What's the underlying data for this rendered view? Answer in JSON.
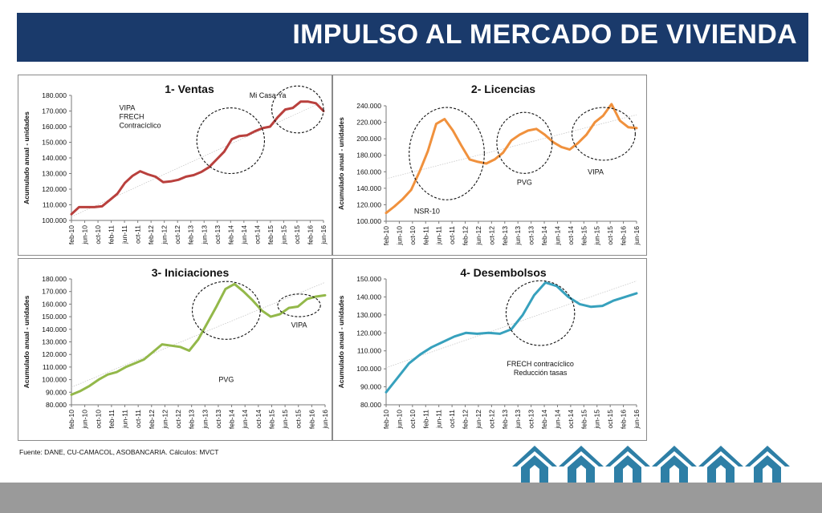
{
  "header": {
    "title": "IMPULSO AL MERCADO DE VIVIENDA",
    "bar_color": "#1a3a6b"
  },
  "source": "Fuente: DANE, CU-CAMACOL, ASOBANCARIA. Cálculos: MVCT",
  "footer": {
    "icon": "house-icon",
    "house_count": 6,
    "house_color": "#2e7fa6"
  },
  "chart_data": [
    {
      "type": "line",
      "title": "1- Ventas",
      "ylabel": "Acumulado anual - unidades",
      "color": "#b9403d",
      "ylim": [
        100000,
        180000
      ],
      "yticks": [
        "100.000",
        "110.000",
        "120.000",
        "130.000",
        "140.000",
        "150.000",
        "160.000",
        "170.000",
        "180.000"
      ],
      "xticks": [
        "feb-10",
        "jun-10",
        "oct-10",
        "feb-11",
        "jun-11",
        "oct-11",
        "feb-12",
        "jun-12",
        "oct-12",
        "feb-13",
        "jun-13",
        "oct-13",
        "feb-14",
        "jun-14",
        "oct-14",
        "feb-15",
        "jun-15",
        "oct-15",
        "feb-16",
        "jun-16"
      ],
      "values": [
        104000,
        108500,
        108500,
        108500,
        109000,
        113000,
        117000,
        124000,
        128500,
        131500,
        129500,
        128000,
        124500,
        125000,
        126000,
        128000,
        129000,
        131000,
        134000,
        139000,
        144000,
        152000,
        154000,
        154500,
        157000,
        159000,
        160000,
        166000,
        171000,
        172000,
        176000,
        176000,
        175000,
        170000
      ],
      "annotations": [
        {
          "text": "VIPA\nFRECH\nContracíclico",
          "x": 3.6,
          "y": 170500,
          "anchor": "start"
        },
        {
          "text": "Mi Casa Ya",
          "x": 14.8,
          "y": 178500,
          "anchor": "middle"
        }
      ],
      "circles": [
        {
          "cx": 12.0,
          "cy": 151000,
          "rx": 2.55,
          "ry": 21000
        },
        {
          "cx": 17.05,
          "cy": 171000,
          "rx": 1.95,
          "ry": 15000
        }
      ]
    },
    {
      "type": "line",
      "title": "2- Licencias",
      "ylabel": "Acumulado anual - unidades",
      "color": "#f0913d",
      "ylim": [
        100000,
        240000
      ],
      "yticks": [
        "100.000",
        "120.000",
        "140.000",
        "160.000",
        "180.000",
        "200.000",
        "220.000",
        "240.000"
      ],
      "xticks": [
        "feb-10",
        "jun-10",
        "oct-10",
        "feb-11",
        "jun-11",
        "oct-11",
        "feb-12",
        "jun-12",
        "oct-12",
        "feb-13",
        "jun-13",
        "oct-13",
        "feb-14",
        "jun-14",
        "oct-14",
        "feb-15",
        "jun-15",
        "oct-15",
        "feb-16",
        "jun-16"
      ],
      "values": [
        110000,
        118000,
        127000,
        138000,
        160000,
        185000,
        218000,
        224000,
        210000,
        192000,
        175000,
        172000,
        170000,
        175000,
        183000,
        198000,
        205000,
        210000,
        212000,
        205000,
        196000,
        190000,
        187000,
        195000,
        205000,
        220000,
        228000,
        242000,
        222000,
        214000,
        213000
      ],
      "annotations": [
        {
          "text": "NSR-10",
          "x": 3.1,
          "y": 109000,
          "anchor": "middle"
        },
        {
          "text": "PVG",
          "x": 10.5,
          "y": 144000,
          "anchor": "middle"
        },
        {
          "text": "VIPA",
          "x": 15.9,
          "y": 157000,
          "anchor": "middle"
        }
      ],
      "circles": [
        {
          "cx": 4.6,
          "cy": 182000,
          "rx": 2.85,
          "ry": 56000
        },
        {
          "cx": 10.5,
          "cy": 195000,
          "rx": 2.1,
          "ry": 37000
        },
        {
          "cx": 16.5,
          "cy": 206000,
          "rx": 2.4,
          "ry": 32000
        }
      ]
    },
    {
      "type": "line",
      "title": "3- Iniciaciones",
      "ylabel": "Acumulado anual - unidades",
      "color": "#93b84a",
      "ylim": [
        80000,
        180000
      ],
      "yticks": [
        "80.000",
        "90.000",
        "100.000",
        "110.000",
        "120.000",
        "130.000",
        "140.000",
        "150.000",
        "160.000",
        "170.000",
        "180.000"
      ],
      "xticks": [
        "feb-10",
        "jun-10",
        "oct-10",
        "feb-11",
        "jun-11",
        "oct-11",
        "feb-12",
        "jun-12",
        "oct-12",
        "feb-13",
        "jun-13",
        "oct-13",
        "feb-14",
        "jun-14",
        "oct-14",
        "feb-15",
        "jun-15",
        "oct-15",
        "feb-16",
        "jun-16"
      ],
      "values": [
        88000,
        91000,
        95000,
        100000,
        104000,
        106000,
        110000,
        113000,
        116000,
        122000,
        128000,
        127000,
        126000,
        123000,
        132000,
        145000,
        158000,
        172000,
        176000,
        170000,
        163000,
        155000,
        150000,
        152000,
        157000,
        158000,
        164000,
        166000,
        167000
      ],
      "annotations": [
        {
          "text": "PVG",
          "x": 11.6,
          "y": 98000,
          "anchor": "middle"
        },
        {
          "text": "VIPA",
          "x": 17.05,
          "y": 141500,
          "anchor": "middle"
        }
      ],
      "circles": [
        {
          "cx": 11.6,
          "cy": 155000,
          "rx": 2.55,
          "ry": 23000
        },
        {
          "cx": 17.05,
          "cy": 159000,
          "rx": 1.6,
          "ry": 9000
        }
      ]
    },
    {
      "type": "line",
      "title": "4- Desembolsos",
      "ylabel": "Acumulado anual - unidades",
      "color": "#37a1bd",
      "ylim": [
        80000,
        150000
      ],
      "yticks": [
        "80.000",
        "90.000",
        "100.000",
        "110.000",
        "120.000",
        "130.000",
        "140.000",
        "150.000"
      ],
      "xticks": [
        "feb-10",
        "jun-10",
        "oct-10",
        "feb-11",
        "jun-11",
        "oct-11",
        "feb-12",
        "jun-12",
        "oct-12",
        "feb-13",
        "jun-13",
        "oct-13",
        "feb-14",
        "jun-14",
        "oct-14",
        "feb-15",
        "jun-15",
        "oct-15",
        "feb-16",
        "jun-16"
      ],
      "values": [
        87000,
        95000,
        103000,
        108000,
        112000,
        115000,
        118000,
        120000,
        119500,
        120000,
        119500,
        122000,
        130000,
        141000,
        148000,
        146000,
        140000,
        136000,
        134500,
        135000,
        138000,
        140000,
        142000
      ],
      "annotations": [
        {
          "text": "FRECH contracíclico\nReducción tasas",
          "x": 11.7,
          "y": 101500,
          "anchor": "middle"
        }
      ],
      "circles": [
        {
          "cx": 11.7,
          "cy": 131000,
          "rx": 2.6,
          "ry": 18000
        }
      ]
    }
  ]
}
